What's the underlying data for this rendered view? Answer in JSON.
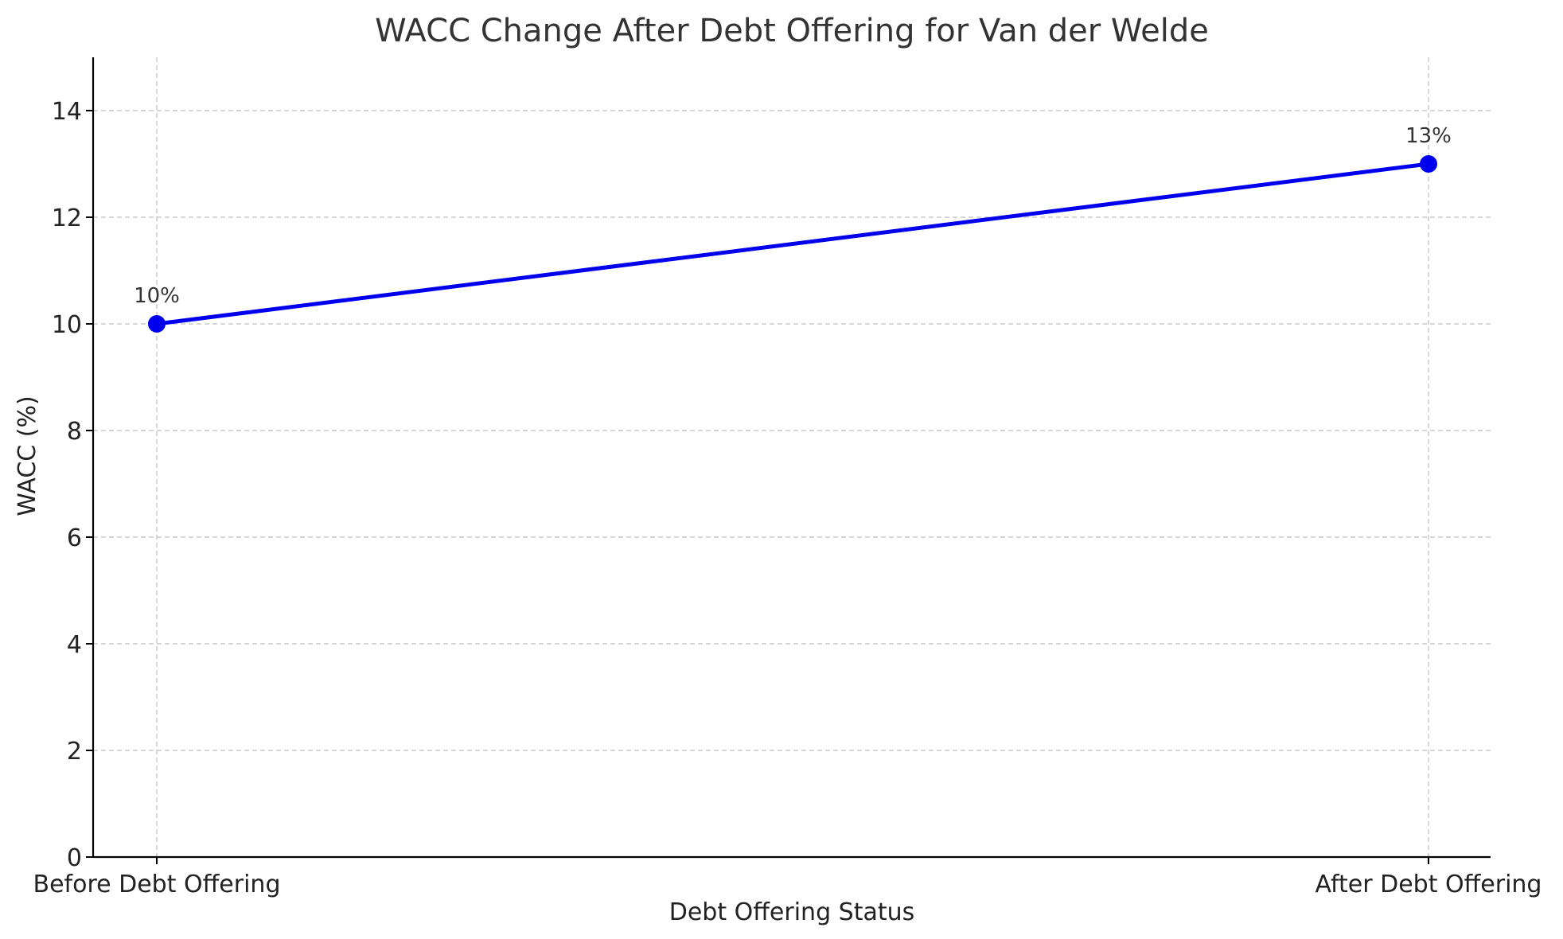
{
  "chart_data": {
    "type": "line",
    "title": "WACC Change After Debt Offering for Van der Welde",
    "xlabel": "Debt Offering Status",
    "ylabel": "WACC (%)",
    "categories": [
      "Before Debt Offering",
      "After Debt Offering"
    ],
    "series": [
      {
        "values": [
          10,
          13
        ],
        "labels": [
          "10%",
          "13%"
        ],
        "color": "#0000ee"
      }
    ],
    "ylim": [
      0,
      15
    ],
    "yticks": [
      0,
      2,
      4,
      6,
      8,
      10,
      12,
      14
    ],
    "ytick_labels": [
      "0",
      "2",
      "4",
      "6",
      "8",
      "10",
      "12",
      "14"
    ],
    "grid": true,
    "legend": "none"
  }
}
